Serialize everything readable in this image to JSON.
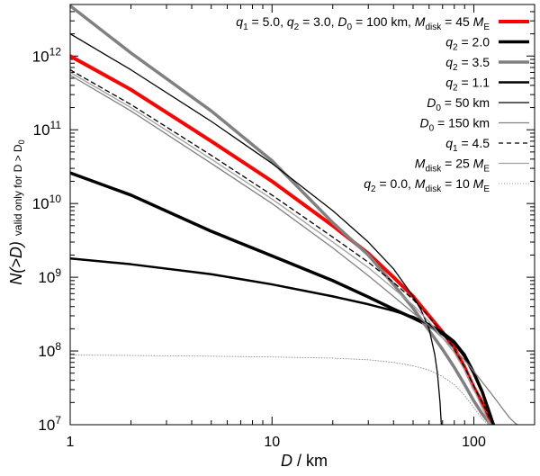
{
  "chart_data": {
    "type": "line",
    "xscale": "log",
    "yscale": "log",
    "xlim": [
      1,
      200
    ],
    "ylim": [
      10000000,
      5000000000000
    ],
    "xlabel": {
      "sym": "D",
      "rest": " / km"
    },
    "ylabel": {
      "main": "N(>D)",
      "note": "valid only for D > D",
      "sub": "0"
    },
    "x_ticks": [
      {
        "value": 1,
        "label": "1"
      },
      {
        "value": 10,
        "label": "10"
      },
      {
        "value": 100,
        "label": "100"
      }
    ],
    "y_ticks": [
      {
        "value": 10000000,
        "base": "10",
        "exp": "7"
      },
      {
        "value": 100000000,
        "base": "10",
        "exp": "8"
      },
      {
        "value": 1000000000,
        "base": "10",
        "exp": "9"
      },
      {
        "value": 10000000000,
        "base": "10",
        "exp": "10"
      },
      {
        "value": 100000000000,
        "base": "10",
        "exp": "11"
      },
      {
        "value": 1000000000000,
        "base": "10",
        "exp": "12"
      }
    ],
    "legend_position": "top-right",
    "series": [
      {
        "name": "q1 = 5.0, q2 = 3.0, D0 = 100 km, Mdisk = 45 ME",
        "legend": [
          {
            "t": "q"
          },
          {
            "t": "1",
            "s": "sub"
          },
          {
            "t": " = 5.0, ",
            "s": "r"
          },
          {
            "t": "q"
          },
          {
            "t": "2",
            "s": "sub"
          },
          {
            "t": " = 3.0, ",
            "s": "r"
          },
          {
            "t": "D"
          },
          {
            "t": "0",
            "s": "sub"
          },
          {
            "t": " = 100 km, ",
            "s": "r"
          },
          {
            "t": "M"
          },
          {
            "t": "disk",
            "s": "subr"
          },
          {
            "t": " = 45 ",
            "s": "r"
          },
          {
            "t": "M"
          },
          {
            "t": "E",
            "s": "subr"
          }
        ],
        "color": "#ff0000",
        "width": 4,
        "dash": "",
        "x": [
          1,
          2,
          5,
          10,
          20,
          30,
          40,
          50,
          60,
          70,
          80,
          90,
          100,
          110,
          115,
          118,
          120,
          122,
          124,
          125
        ],
        "y": [
          1000000000000.0,
          350000000000.0,
          70000000000.0,
          20000000000.0,
          5000000000.0,
          2100000000.0,
          1000000000.0,
          550000000.0,
          300000000.0,
          180000000.0,
          110000000.0,
          60000000.0,
          32000000.0,
          20000000.0,
          16000000.0,
          13000000.0,
          11500000.0,
          10500000.0,
          10000000.0,
          10000000.0
        ]
      },
      {
        "name": "q2 = 2.0",
        "legend": [
          {
            "t": "q"
          },
          {
            "t": "2",
            "s": "sub"
          },
          {
            "t": " = 2.0",
            "s": "r"
          }
        ],
        "color": "#000000",
        "width": 3.5,
        "dash": "",
        "x": [
          1,
          2,
          5,
          10,
          20,
          30,
          40,
          50,
          60,
          70,
          80,
          90,
          100,
          110,
          120,
          125
        ],
        "y": [
          26000000000.0,
          13000000000.0,
          4200000000.0,
          1950000000.0,
          900000000.0,
          540000000.0,
          370000000.0,
          280000000.0,
          220000000.0,
          170000000.0,
          130000000.0,
          85000000.0,
          50000000.0,
          28000000.0,
          14000000.0,
          10000000.0
        ]
      },
      {
        "name": "q2 = 3.5",
        "legend": [
          {
            "t": "q"
          },
          {
            "t": "2",
            "s": "sub"
          },
          {
            "t": " = 3.5",
            "s": "r"
          }
        ],
        "color": "#808080",
        "width": 3.5,
        "dash": "",
        "x": [
          1,
          2,
          5,
          10,
          20,
          30,
          40,
          50,
          60,
          70,
          80,
          90,
          100,
          110,
          115,
          120,
          123
        ],
        "y": [
          4800000000000.0,
          1100000000000.0,
          180000000000.0,
          38000000000.0,
          5500000000.0,
          2000000000.0,
          800000000.0,
          380000000.0,
          190000000.0,
          105000000.0,
          60000000.0,
          35000000.0,
          21000000.0,
          14000000.0,
          12000000.0,
          10500000.0,
          10000000.0
        ]
      },
      {
        "name": "q2 = 1.1",
        "legend": [
          {
            "t": "q"
          },
          {
            "t": "2",
            "s": "sub"
          },
          {
            "t": " = 1.1",
            "s": "r"
          }
        ],
        "color": "#000000",
        "width": 2.5,
        "dash": "",
        "x": [
          1,
          2,
          5,
          10,
          20,
          30,
          40,
          50,
          60,
          70,
          80,
          90,
          100,
          110,
          120,
          125
        ],
        "y": [
          1800000000.0,
          1500000000.0,
          1100000000.0,
          800000000.0,
          550000000.0,
          430000000.0,
          350000000.0,
          290000000.0,
          230000000.0,
          180000000.0,
          135000000.0,
          90000000.0,
          52000000.0,
          28000000.0,
          14000000.0,
          10000000.0
        ]
      },
      {
        "name": "D0 = 50 km",
        "legend": [
          {
            "t": "D"
          },
          {
            "t": "0",
            "s": "sub"
          },
          {
            "t": " = 50 km",
            "s": "r"
          }
        ],
        "color": "#000000",
        "width": 1.3,
        "dash": "",
        "x": [
          1,
          2,
          5,
          10,
          20,
          30,
          40,
          50,
          55,
          60,
          64,
          66,
          68,
          69
        ],
        "y": [
          2000000000000.0,
          650000000000.0,
          130000000000.0,
          35000000000.0,
          8000000000.0,
          3000000000.0,
          1300000000.0,
          550000000.0,
          350000000.0,
          200000000.0,
          90000000.0,
          50000000.0,
          20000000.0,
          10000000.0
        ]
      },
      {
        "name": "D0 = 150 km",
        "legend": [
          {
            "t": "D"
          },
          {
            "t": "0",
            "s": "sub"
          },
          {
            "t": " = 150 km",
            "s": "r"
          }
        ],
        "color": "#808080",
        "width": 1.3,
        "dash": "",
        "x": [
          1,
          2,
          5,
          10,
          20,
          30,
          40,
          50,
          60,
          70,
          80,
          90,
          100,
          110,
          120,
          130,
          140,
          150,
          160,
          165
        ],
        "y": [
          550000000000.0,
          180000000000.0,
          35000000000.0,
          10000000000.0,
          2500000000.0,
          1050000000.0,
          550000000.0,
          330000000.0,
          220000000.0,
          150000000.0,
          105000000.0,
          75000000.0,
          53000000.0,
          38000000.0,
          28000000.0,
          21000000.0,
          16000000.0,
          12500000.0,
          10500000.0,
          10000000.0
        ]
      },
      {
        "name": "q1 = 4.5",
        "legend": [
          {
            "t": "q"
          },
          {
            "t": "1",
            "s": "sub"
          },
          {
            "t": " = 4.5",
            "s": "r"
          }
        ],
        "color": "#000000",
        "width": 1.3,
        "dash": "5,4",
        "x": [
          1,
          2,
          5,
          10,
          20,
          30,
          40,
          50,
          60,
          70,
          80,
          90,
          100,
          110,
          115,
          120,
          124
        ],
        "y": [
          650000000000.0,
          220000000000.0,
          45000000000.0,
          13000000000.0,
          3500000000.0,
          1600000000.0,
          850000000.0,
          500000000.0,
          290000000.0,
          175000000.0,
          108000000.0,
          60000000.0,
          33000000.0,
          20000000.0,
          16000000.0,
          12000000.0,
          10000000.0
        ]
      },
      {
        "name": "Mdisk = 25 ME",
        "legend": [
          {
            "t": "M"
          },
          {
            "t": "disk",
            "s": "subr"
          },
          {
            "t": " = 25 ",
            "s": "r"
          },
          {
            "t": "M"
          },
          {
            "t": "E",
            "s": "subr"
          }
        ],
        "color": "#a0a0a0",
        "width": 1.3,
        "dash": "",
        "x": [
          1,
          2,
          5,
          10,
          20,
          30,
          40,
          50,
          60,
          70,
          80,
          90,
          100,
          110,
          115,
          118,
          121
        ],
        "y": [
          600000000000.0,
          200000000000.0,
          40000000000.0,
          11500000000.0,
          3000000000.0,
          1350000000.0,
          700000000.0,
          420000000.0,
          250000000.0,
          150000000.0,
          95000000.0,
          55000000.0,
          30000000.0,
          17000000.0,
          13000000.0,
          11000000.0,
          10000000.0
        ]
      },
      {
        "name": "q2 = 0.0, Mdisk = 10 ME",
        "legend": [
          {
            "t": "q"
          },
          {
            "t": "2",
            "s": "sub"
          },
          {
            "t": " = 0.0, ",
            "s": "r"
          },
          {
            "t": "M"
          },
          {
            "t": "disk",
            "s": "subr"
          },
          {
            "t": " = 10 ",
            "s": "r"
          },
          {
            "t": "M"
          },
          {
            "t": "E",
            "s": "subr"
          }
        ],
        "color": "#909090",
        "width": 0.9,
        "dash": "1,2",
        "x": [
          1,
          2,
          5,
          10,
          20,
          30,
          40,
          50,
          60,
          70,
          80,
          90,
          100,
          110,
          118
        ],
        "y": [
          88000000.0,
          87000000.0,
          85000000.0,
          83000000.0,
          80000000.0,
          76000000.0,
          70000000.0,
          63000000.0,
          55000000.0,
          45000000.0,
          35000000.0,
          25000000.0,
          17000000.0,
          12000000.0,
          10000000.0
        ]
      }
    ]
  }
}
